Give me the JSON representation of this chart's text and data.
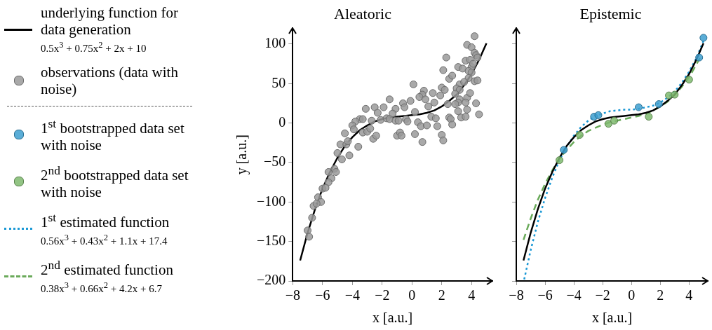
{
  "chart_data": [
    {
      "type": "scatter",
      "title": "Aleatoric",
      "xlabel": "x [a.u.]",
      "ylabel": "y [a.u.]",
      "xlim": [
        -8,
        5.4
      ],
      "ylim": [
        -200,
        120
      ],
      "xticks": [
        -8,
        -6,
        -4,
        -2,
        0,
        2,
        4
      ],
      "yticks": [
        -200,
        -150,
        -100,
        -50,
        0,
        50,
        100
      ],
      "grid": false,
      "legend": "left",
      "series": [
        {
          "name": "underlying function for data generation\n0.5x$^{3}$ + 0.75x$^{2}$ + 2x + 10",
          "type": "line",
          "color": "#000000",
          "line_style": "solid",
          "marker": "none",
          "x": [
            -7.5,
            -7,
            -6.5,
            -6,
            -5.5,
            -5,
            -4.5,
            -4,
            -3.5,
            -3,
            -2.5,
            -2,
            -1.5,
            -1,
            -0.5,
            0,
            0.5,
            1,
            1.5,
            2,
            2.5,
            3,
            3.5,
            4,
            4.5,
            5
          ],
          "values": [
            -174,
            -139,
            -109,
            -83,
            -62,
            -44,
            -29,
            -18,
            -9,
            -3,
            2,
            5,
            7,
            8,
            9,
            10,
            11,
            13,
            16,
            21,
            28,
            36,
            48,
            62,
            80,
            101
          ]
        },
        {
          "name": "observations (data with noise)",
          "type": "scatter",
          "color": "#9a9a9a",
          "marker": "circle",
          "x": [
            4.2,
            3.7,
            4.0,
            4.2,
            4.3,
            4.4,
            2.3,
            3.6,
            3.9,
            3.1,
            3.4,
            4.0,
            2.1,
            4.1,
            3.8,
            4.0,
            2.5,
            2.7,
            4.2,
            4.4,
            3.8,
            0.1,
            3.2,
            3.5,
            3.0,
            3.2,
            2.0,
            2.2,
            0.8,
            1.4,
            1.9,
            0.7,
            0.5,
            0.9,
            3.7,
            3.2,
            3.9,
            2.9,
            -0.1,
            -1.5,
            -0.6,
            -0.5,
            -1.1,
            -1.9,
            -2.5,
            -3.1,
            3.6,
            4.3,
            3.1,
            2.9,
            2.4,
            1.5,
            1.1,
            0.2,
            -1.3,
            -2.3,
            -3.5,
            -3.3,
            -3.8,
            -4.0,
            -2.7,
            -2.1,
            -1.7,
            -1.5,
            -1.1,
            -0.9,
            -0.4,
            -0.3,
            0.4,
            0.6,
            1.0,
            1.3,
            1.6,
            1.7,
            2.5,
            2.6,
            2.7,
            3.1,
            3.7,
            3.3,
            3.6,
            4.5,
            -4.5,
            -3.9,
            -3.3,
            -3.0,
            -2.8,
            -2.6,
            -2.4,
            -1.0,
            -0.8,
            -0.7,
            0.2,
            0.7,
            2.0,
            2.1,
            -4.8,
            -4.4,
            -4.3,
            -3.6,
            -5.0,
            -4.7,
            -4.2,
            -5.6,
            -5.2,
            -5.1,
            -5.4,
            -5.6,
            -6.0,
            -5.8,
            -6.3,
            -6.1,
            -6.6,
            -6.4,
            -6.7,
            -7.0,
            -6.9
          ],
          "values": [
            110,
            99,
            96,
            89,
            86,
            83,
            83,
            79,
            80,
            71,
            69,
            71,
            67,
            75,
            66,
            64,
            56,
            60,
            53,
            54,
            57,
            49,
            49,
            52,
            44,
            42,
            45,
            42,
            41,
            38,
            35,
            36,
            33,
            30,
            32,
            30,
            38,
            37,
            28,
            30,
            25,
            20,
            18,
            20,
            20,
            18,
            26,
            25,
            26,
            24,
            24,
            26,
            21,
            14,
            12,
            13,
            5,
            5,
            2,
            -3,
            3,
            4,
            6,
            5,
            3,
            3,
            5,
            2,
            1,
            -4,
            -3,
            8,
            6,
            -4,
            7,
            5,
            -2,
            15,
            17,
            7,
            8,
            11,
            -13,
            -8,
            -12,
            -11,
            -7,
            -20,
            -16,
            -16,
            -12,
            -16,
            -14,
            -24,
            -15,
            -22,
            -27,
            -27,
            -23,
            -30,
            -38,
            -46,
            -41,
            -62,
            -58,
            -62,
            -70,
            -75,
            -83,
            -82,
            -94,
            -100,
            -105,
            -102,
            -120,
            -136,
            -144
          ]
        }
      ]
    },
    {
      "type": "scatter",
      "title": "Epistemic",
      "xlabel": "x [a.u.]",
      "xlim": [
        -8,
        5.3
      ],
      "ylim": [
        -200,
        120
      ],
      "xticks": [
        -8,
        -6,
        -4,
        -2,
        0,
        2,
        4
      ],
      "yticks": [
        -200,
        -150,
        -100,
        -50,
        0,
        50,
        100
      ],
      "tick_labels": "x",
      "grid": false,
      "legend": "left",
      "series": [
        {
          "type": "line",
          "color": "#000000",
          "line_style": "solid",
          "marker": "none",
          "x": [
            -7.5,
            -7,
            -6.5,
            -6,
            -5.5,
            -5,
            -4.5,
            -4,
            -3.5,
            -3,
            -2.5,
            -2,
            -1.5,
            -1,
            -0.5,
            0,
            0.5,
            1,
            1.5,
            2,
            2.5,
            3,
            3.5,
            4,
            4.5,
            5
          ],
          "values": [
            -174,
            -139,
            -109,
            -83,
            -62,
            -44,
            -29,
            -18,
            -9,
            -3,
            2,
            5,
            7,
            8,
            9,
            10,
            11,
            13,
            16,
            21,
            28,
            36,
            48,
            62,
            80,
            101
          ]
        },
        {
          "name": "1$^{st}$ bootstrapped data set with noise",
          "type": "scatter",
          "color": "#3d9fd0",
          "marker": "circle",
          "x": [
            -4.7,
            -2.6,
            -2.3,
            0.5,
            1.9,
            4.7,
            5.0
          ],
          "values": [
            -34,
            8,
            10,
            20,
            24,
            83,
            108
          ]
        },
        {
          "name": "2$^{nd}$ bootstrapped data set with noise",
          "type": "scatter",
          "color": "#7fba6e",
          "marker": "circle",
          "x": [
            -5.0,
            -3.6,
            -1.6,
            -1.2,
            1.2,
            2.6,
            3.0,
            4.0
          ],
          "values": [
            -47,
            -15,
            -1,
            3,
            8,
            35,
            36,
            55
          ]
        },
        {
          "name": "1$^{st}$ estimated function\n0.56x$^{3}$ + 0.43x$^{2}$ + 1.1x + 17.4",
          "type": "line",
          "color": "#1a98d5",
          "line_style": "dotted",
          "marker": "none",
          "x": [
            -7.45,
            -7,
            -6.5,
            -6,
            -5.5,
            -5,
            -4.5,
            -4,
            -3.5,
            -3,
            -2.5,
            -2,
            -1.5,
            -1,
            -0.5,
            0,
            0.5,
            1,
            1.5,
            2,
            2.5,
            3,
            3.5,
            4,
            4.5,
            5
          ],
          "values": [
            -198,
            -161,
            -125,
            -95,
            -69,
            -47,
            -30,
            -16,
            -5,
            3,
            9,
            12,
            15,
            16,
            17,
            17,
            18,
            20,
            22,
            26,
            32,
            40,
            51,
            65,
            82,
            104
          ]
        },
        {
          "name": "2$^{nd}$ estimated function\n0.38x$^{3}$ + 0.66x$^{2}$ + 4.2x + 6.7",
          "type": "line",
          "color": "#6aaa5a",
          "line_style": "dashed",
          "marker": "none",
          "x": [
            -7.5,
            -7,
            -6.5,
            -6,
            -5.5,
            -5,
            -4.5,
            -4,
            -3.5,
            -3,
            -2.5,
            -2,
            -1.5,
            -1,
            -0.5,
            0,
            0.5,
            1,
            1.5,
            2,
            2.5,
            3,
            3.5,
            4,
            4.5,
            4.8
          ],
          "values": [
            -148,
            -121,
            -97,
            -77,
            -60,
            -45,
            -34,
            -24,
            -16,
            -10,
            -6,
            -2,
            1,
            3,
            5,
            7,
            9,
            12,
            16,
            21,
            27,
            36,
            46,
            58,
            74,
            84
          ]
        }
      ]
    }
  ]
}
